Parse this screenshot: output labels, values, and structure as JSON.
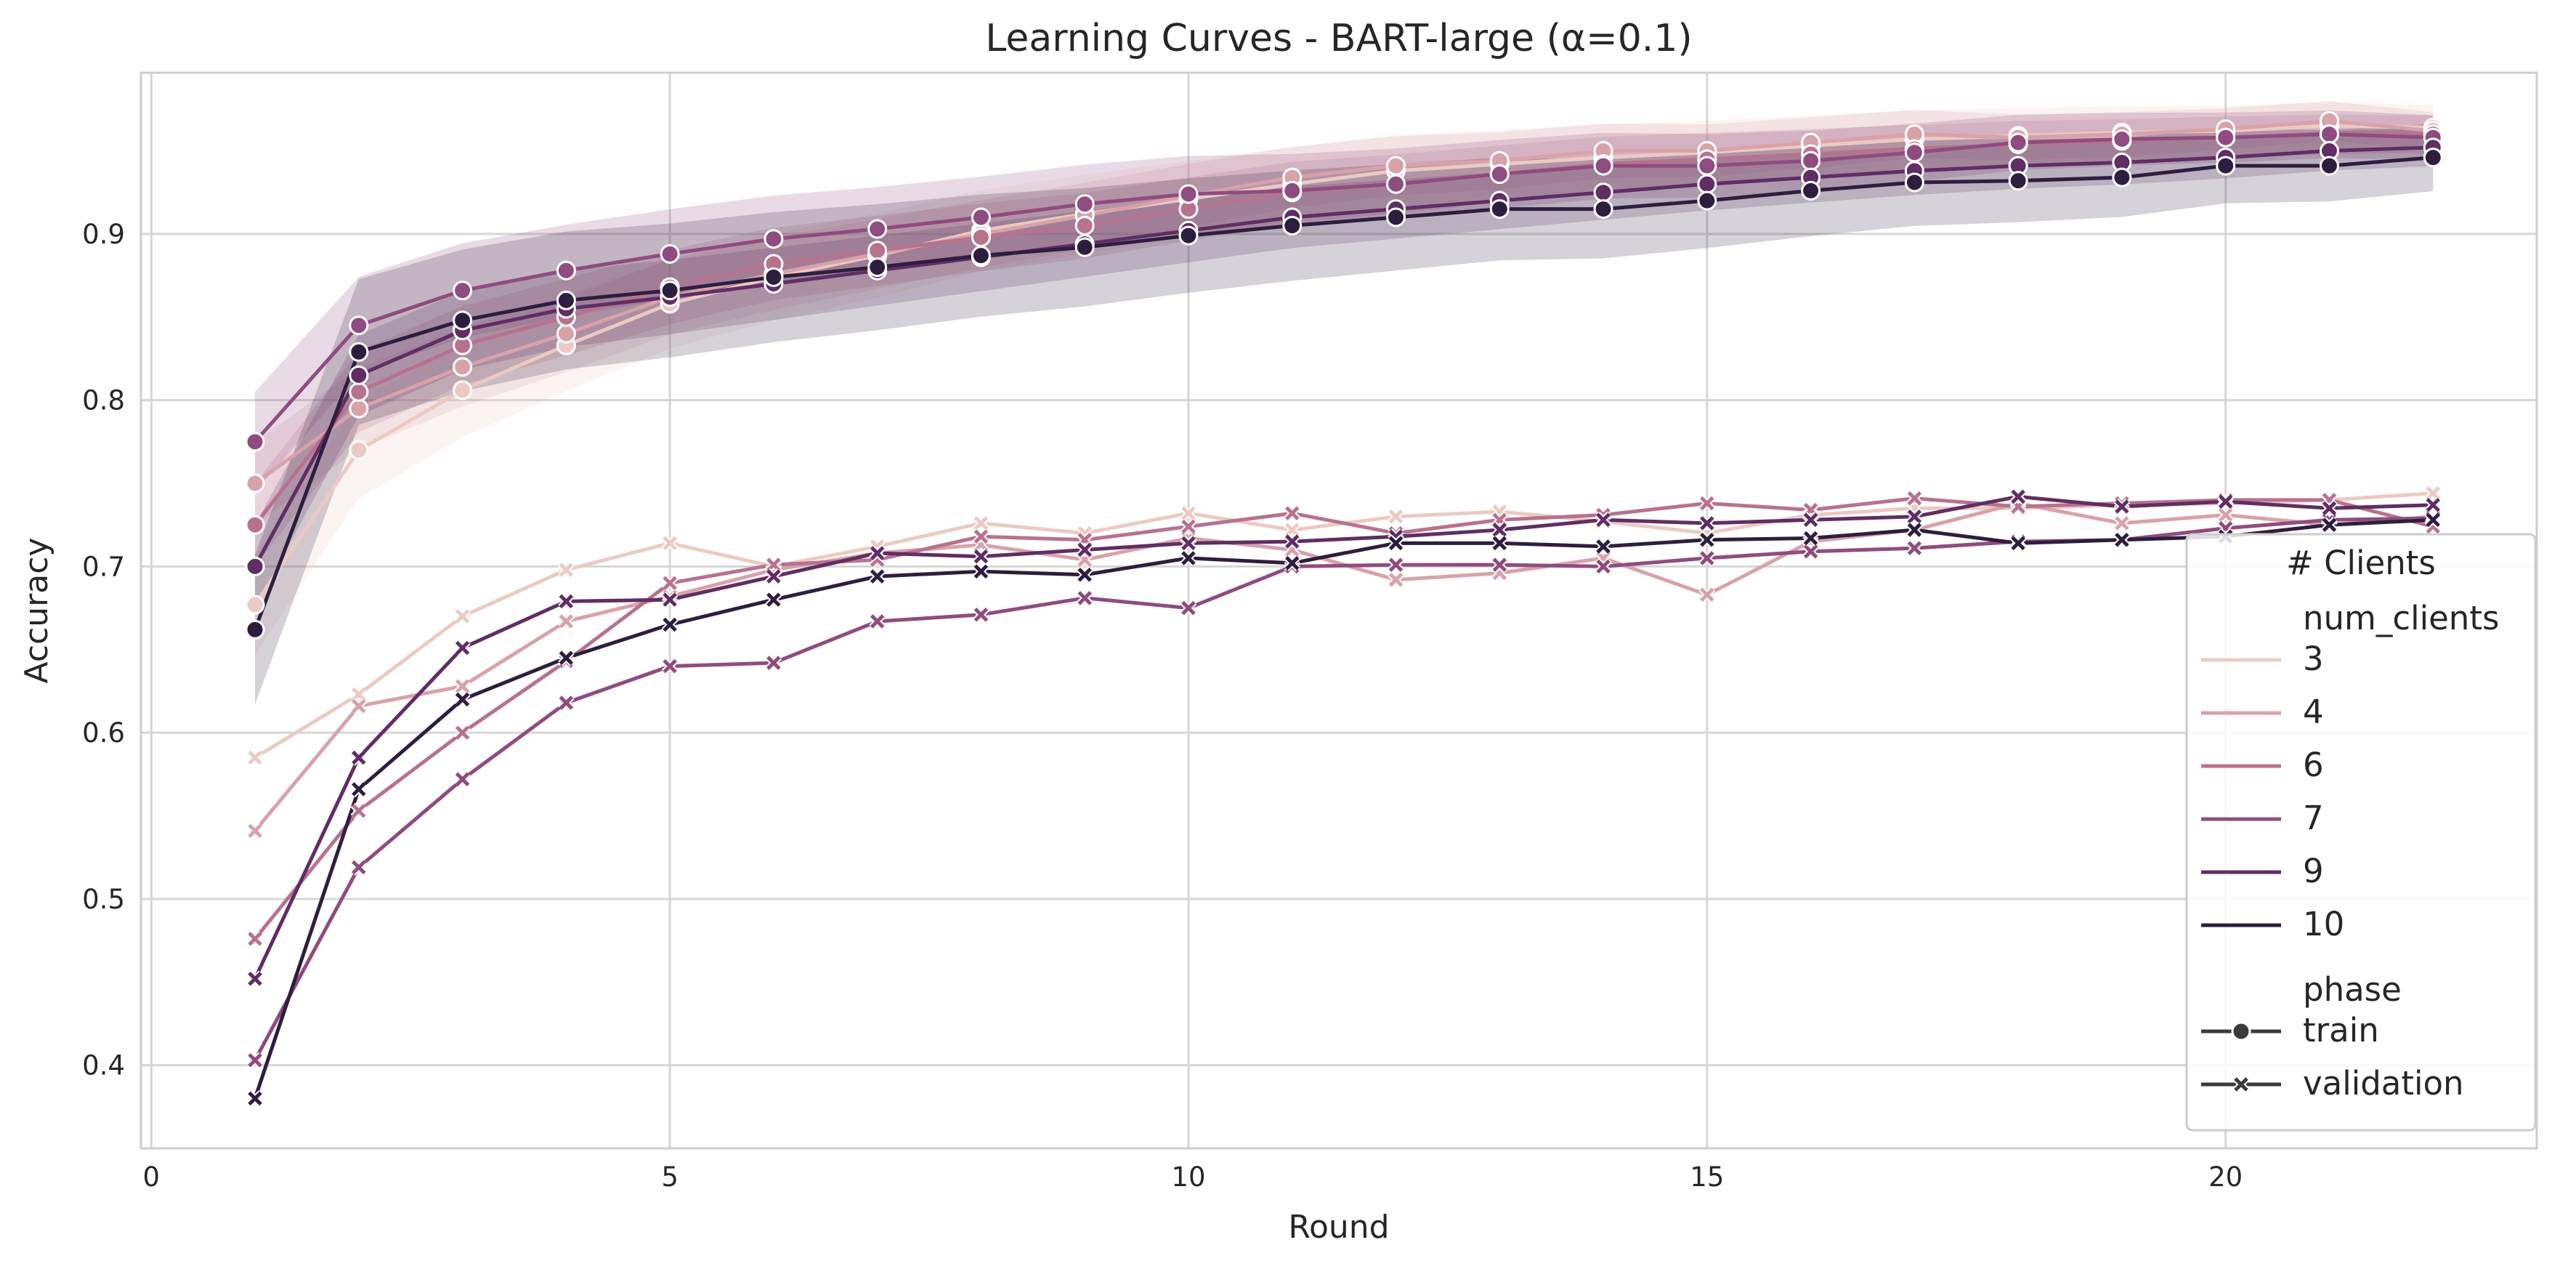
{
  "chart_data": {
    "type": "line",
    "title": "Learning Curves - BART-large (α=0.1)",
    "xlabel": "Round",
    "ylabel": "Accuracy",
    "xlim": [
      -0.1,
      23.0
    ],
    "ylim": [
      0.35,
      0.997
    ],
    "xticks": [
      0,
      5,
      10,
      15,
      20
    ],
    "yticks": [
      0.4,
      0.5,
      0.6,
      0.7,
      0.8,
      0.9
    ],
    "ytick_labels": [
      "0.4",
      "0.5",
      "0.6",
      "0.7",
      "0.8",
      "0.9"
    ],
    "grid": true,
    "x": [
      1,
      2,
      3,
      4,
      5,
      6,
      7,
      8,
      9,
      10,
      11,
      12,
      13,
      14,
      15,
      16,
      17,
      18,
      19,
      20,
      21,
      22
    ],
    "series": [
      {
        "num_clients": "3",
        "phase": "train",
        "color": "#ebcac4",
        "band": 0.03,
        "values": [
          0.677,
          0.77,
          0.806,
          0.833,
          0.858,
          0.874,
          0.887,
          0.902,
          0.912,
          0.921,
          0.93,
          0.938,
          0.942,
          0.946,
          0.949,
          0.953,
          0.957,
          0.959,
          0.961,
          0.962,
          0.965,
          0.964
        ]
      },
      {
        "num_clients": "4",
        "phase": "train",
        "color": "#d8a2aa",
        "band": 0.025,
        "values": [
          0.75,
          0.795,
          0.82,
          0.84,
          0.862,
          0.876,
          0.888,
          0.9,
          0.911,
          0.923,
          0.934,
          0.941,
          0.944,
          0.95,
          0.95,
          0.955,
          0.96,
          0.958,
          0.96,
          0.963,
          0.968,
          0.962
        ]
      },
      {
        "num_clients": "6",
        "phase": "train",
        "color": "#b8728e",
        "band": 0.025,
        "values": [
          0.725,
          0.805,
          0.833,
          0.85,
          0.868,
          0.882,
          0.89,
          0.898,
          0.905,
          0.915,
          0.925,
          0.93,
          0.936,
          0.942,
          0.945,
          0.948,
          0.951,
          0.954,
          0.956,
          0.958,
          0.96,
          0.96
        ]
      },
      {
        "num_clients": "7",
        "phase": "train",
        "color": "#8f4c7f",
        "band": 0.03,
        "values": [
          0.775,
          0.845,
          0.866,
          0.878,
          0.888,
          0.897,
          0.903,
          0.91,
          0.918,
          0.924,
          0.926,
          0.93,
          0.936,
          0.941,
          0.941,
          0.944,
          0.949,
          0.955,
          0.957,
          0.958,
          0.96,
          0.958
        ]
      },
      {
        "num_clients": "9",
        "phase": "train",
        "color": "#5f2e63",
        "band": 0.025,
        "values": [
          0.7,
          0.815,
          0.842,
          0.855,
          0.862,
          0.87,
          0.878,
          0.886,
          0.894,
          0.902,
          0.91,
          0.915,
          0.92,
          0.925,
          0.93,
          0.934,
          0.938,
          0.941,
          0.943,
          0.946,
          0.95,
          0.952
        ]
      },
      {
        "num_clients": "10",
        "phase": "train",
        "color": "#2d1e3e",
        "band": 0.045,
        "values": [
          0.662,
          0.829,
          0.848,
          0.86,
          0.866,
          0.874,
          0.88,
          0.887,
          0.892,
          0.899,
          0.905,
          0.91,
          0.915,
          0.915,
          0.92,
          0.926,
          0.931,
          0.932,
          0.934,
          0.941,
          0.941,
          0.946
        ]
      },
      {
        "num_clients": "3",
        "phase": "validation",
        "color": "#ebcac4",
        "values": [
          0.585,
          0.623,
          0.67,
          0.698,
          0.714,
          0.7,
          0.712,
          0.726,
          0.72,
          0.732,
          0.722,
          0.73,
          0.733,
          0.727,
          0.72,
          0.731,
          0.735,
          0.735,
          0.737,
          0.738,
          0.74,
          0.744
        ]
      },
      {
        "num_clients": "4",
        "phase": "validation",
        "color": "#d8a2aa",
        "values": [
          0.541,
          0.616,
          0.628,
          0.667,
          0.682,
          0.698,
          0.708,
          0.713,
          0.704,
          0.717,
          0.71,
          0.692,
          0.696,
          0.705,
          0.683,
          0.715,
          0.722,
          0.738,
          0.726,
          0.731,
          0.725,
          0.73
        ]
      },
      {
        "num_clients": "6",
        "phase": "validation",
        "color": "#b8728e",
        "values": [
          0.476,
          0.553,
          0.6,
          0.643,
          0.69,
          0.701,
          0.704,
          0.718,
          0.716,
          0.724,
          0.732,
          0.72,
          0.728,
          0.731,
          0.738,
          0.734,
          0.741,
          0.736,
          0.738,
          0.74,
          0.74,
          0.724
        ]
      },
      {
        "num_clients": "7",
        "phase": "validation",
        "color": "#8f4c7f",
        "values": [
          0.403,
          0.519,
          0.572,
          0.618,
          0.64,
          0.642,
          0.667,
          0.671,
          0.681,
          0.675,
          0.7,
          0.701,
          0.701,
          0.7,
          0.705,
          0.709,
          0.711,
          0.715,
          0.716,
          0.723,
          0.728,
          0.729
        ]
      },
      {
        "num_clients": "9",
        "phase": "validation",
        "color": "#5f2e63",
        "values": [
          0.452,
          0.585,
          0.651,
          0.679,
          0.68,
          0.694,
          0.708,
          0.706,
          0.71,
          0.714,
          0.715,
          0.718,
          0.722,
          0.728,
          0.726,
          0.728,
          0.73,
          0.742,
          0.736,
          0.739,
          0.735,
          0.737
        ]
      },
      {
        "num_clients": "10",
        "phase": "validation",
        "color": "#2d1e3e",
        "values": [
          0.38,
          0.566,
          0.62,
          0.645,
          0.665,
          0.68,
          0.694,
          0.697,
          0.695,
          0.705,
          0.702,
          0.714,
          0.714,
          0.712,
          0.716,
          0.717,
          0.722,
          0.714,
          0.716,
          0.718,
          0.725,
          0.728
        ]
      }
    ],
    "legend": {
      "placement": "right",
      "title": "# Clients",
      "hue_title": "num_clients",
      "hue_entries": [
        {
          "label": "3",
          "color": "#ebcac4"
        },
        {
          "label": "4",
          "color": "#d8a2aa"
        },
        {
          "label": "6",
          "color": "#b8728e"
        },
        {
          "label": "7",
          "color": "#8f4c7f"
        },
        {
          "label": "9",
          "color": "#5f2e63"
        },
        {
          "label": "10",
          "color": "#2d1e3e"
        }
      ],
      "style_title": "phase",
      "style_entries": [
        {
          "label": "train",
          "marker": "circle"
        },
        {
          "label": "validation",
          "marker": "x"
        }
      ]
    }
  }
}
